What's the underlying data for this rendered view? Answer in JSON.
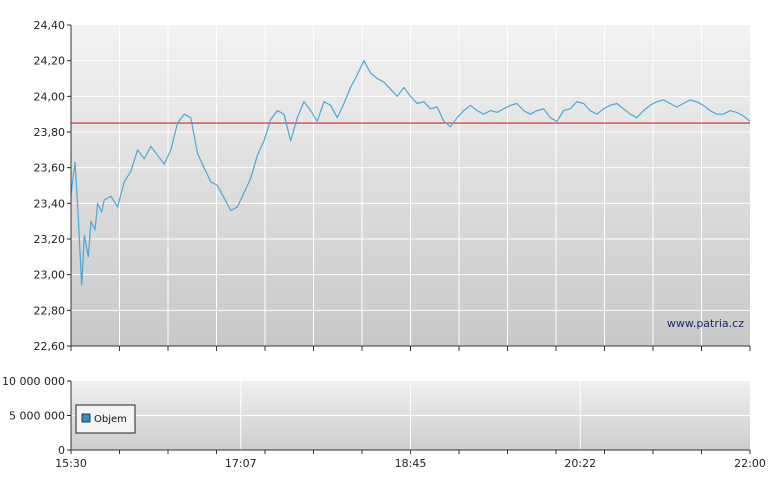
{
  "chart_data": [
    {
      "type": "line",
      "title": "",
      "xlabel": "",
      "ylabel": "",
      "ylim": [
        22.6,
        24.4
      ],
      "ytick_labels": [
        "22,60",
        "22,80",
        "23,00",
        "23,20",
        "23,40",
        "23,60",
        "23,80",
        "24,00",
        "24,20",
        "24,40"
      ],
      "yticks": [
        22.6,
        22.8,
        23.0,
        23.2,
        23.4,
        23.6,
        23.8,
        24.0,
        24.2,
        24.4
      ],
      "reference_line": {
        "value": 23.85,
        "color": "#e02020"
      },
      "watermark": "www.patria.cz",
      "grid": true,
      "series": [
        {
          "color": "#4aa8d8",
          "x_minutes": [
            0,
            3,
            5,
            8,
            10,
            13,
            15,
            18,
            20,
            23,
            25,
            30,
            35,
            40,
            45,
            50,
            55,
            60,
            65,
            70,
            75,
            80,
            85,
            90,
            95,
            100,
            105,
            110,
            115,
            120,
            125,
            130,
            135,
            140,
            145,
            150,
            155,
            160,
            165,
            170,
            175,
            180,
            185,
            190,
            195,
            200,
            205,
            210,
            215,
            220,
            225,
            230,
            235,
            240,
            245,
            250,
            255,
            260,
            265,
            270,
            275,
            280,
            285,
            290,
            295,
            300,
            305,
            310,
            315,
            320,
            325,
            330,
            335,
            340,
            345,
            350,
            355,
            360,
            365,
            370,
            375,
            380,
            385,
            390,
            395,
            400,
            405,
            410,
            415,
            420,
            425,
            430,
            435,
            440,
            445,
            450,
            455,
            460,
            465,
            470,
            475,
            480,
            485,
            490,
            495,
            500,
            505,
            510
          ],
          "values": [
            23.45,
            23.63,
            23.38,
            22.94,
            23.22,
            23.1,
            23.3,
            23.25,
            23.4,
            23.35,
            23.42,
            23.44,
            23.38,
            23.52,
            23.58,
            23.7,
            23.65,
            23.72,
            23.67,
            23.62,
            23.7,
            23.85,
            23.9,
            23.88,
            23.68,
            23.6,
            23.52,
            23.5,
            23.43,
            23.36,
            23.38,
            23.46,
            23.54,
            23.67,
            23.75,
            23.87,
            23.92,
            23.9,
            23.75,
            23.88,
            23.97,
            23.92,
            23.86,
            23.97,
            23.95,
            23.88,
            23.96,
            24.05,
            24.12,
            24.2,
            24.13,
            24.1,
            24.08,
            24.04,
            24.0,
            24.05,
            24.0,
            23.96,
            23.97,
            23.93,
            23.94,
            23.86,
            23.83,
            23.88,
            23.92,
            23.95,
            23.92,
            23.9,
            23.92,
            23.91,
            23.93,
            23.95,
            23.96,
            23.92,
            23.9,
            23.92,
            23.93,
            23.88,
            23.86,
            23.92,
            23.93,
            23.97,
            23.96,
            23.92,
            23.9,
            23.93,
            23.95,
            23.96,
            23.93,
            23.9,
            23.88,
            23.92,
            23.95,
            23.97,
            23.98,
            23.96,
            23.94,
            23.96,
            23.98,
            23.97,
            23.95,
            23.92,
            23.9,
            23.9,
            23.92,
            23.91,
            23.89,
            23.86
          ]
        }
      ]
    },
    {
      "type": "bar",
      "title": "",
      "ylim": [
        0,
        10000000
      ],
      "ytick_labels": [
        "0",
        "5 000 000",
        "10 000 000"
      ],
      "yticks": [
        0,
        5000000,
        10000000
      ],
      "legend": {
        "label": "Objem",
        "color": "#3a8fc8",
        "placement": "left"
      },
      "series": [
        {
          "name": "Objem",
          "values": []
        }
      ],
      "x_tick_labels": [
        "15:30",
        "17:07",
        "18:45",
        "20:22",
        "22:00"
      ],
      "x_range_minutes": [
        0,
        390
      ]
    }
  ]
}
